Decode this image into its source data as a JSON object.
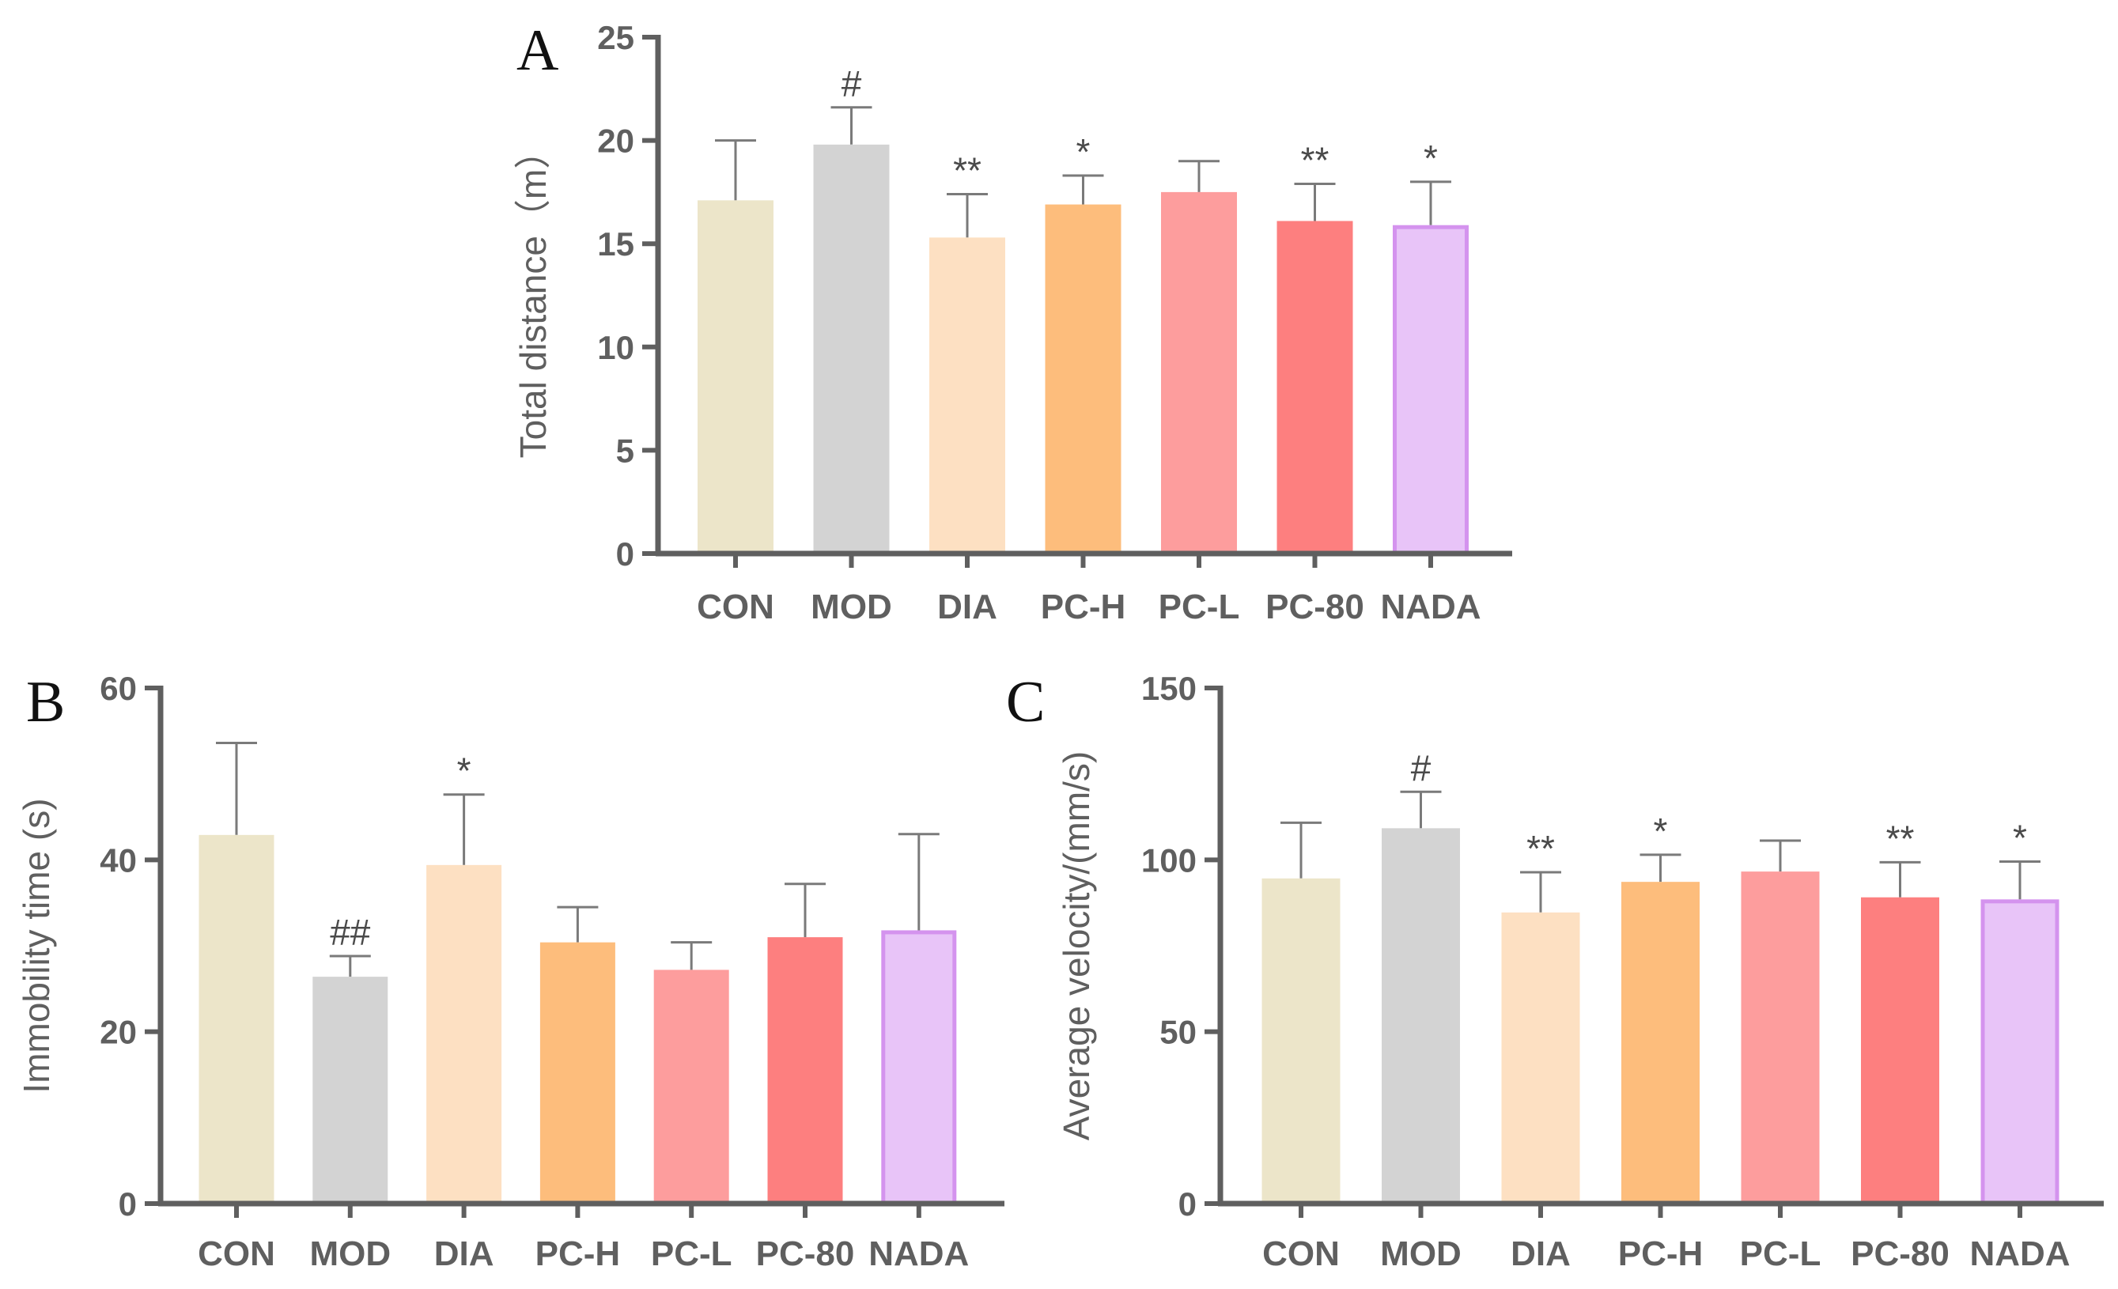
{
  "colors": {
    "axis": "#5f5f5f",
    "errorbar": "#7a7a7a",
    "text": "#5f5f5f"
  },
  "group_colors": [
    "#ece5c9",
    "#d3d3d3",
    "#fde0c2",
    "#fdbd7c",
    "#fd9d9d",
    "#fd7f7f",
    "#e8c4f8"
  ],
  "group_edges": [
    "#ece5c9",
    "#d3d3d3",
    "#fde0c2",
    "#fdbd7c",
    "#fd9d9d",
    "#fd7f7f",
    "#d493ee"
  ],
  "chart_data": [
    {
      "panel": "A",
      "type": "bar",
      "categories": [
        "CON",
        "MOD",
        "DIA",
        "PC-H",
        "PC-L",
        "PC-80",
        "NADA"
      ],
      "values": [
        17.1,
        19.8,
        15.3,
        16.9,
        17.5,
        16.1,
        15.9
      ],
      "errors": [
        2.9,
        1.8,
        2.1,
        1.4,
        1.5,
        1.8,
        2.1
      ],
      "significance": [
        "",
        "#",
        "**",
        "*",
        "",
        "**",
        "*"
      ],
      "ylabel": "Total distance（m）",
      "ylim": [
        0,
        25
      ],
      "yticks": [
        0,
        5,
        10,
        15,
        20,
        25
      ],
      "ytick_labels": [
        "0",
        "5",
        "10",
        "15",
        "20",
        "25"
      ]
    },
    {
      "panel": "B",
      "type": "bar",
      "categories": [
        "CON",
        "MOD",
        "DIA",
        "PC-H",
        "PC-L",
        "PC-80",
        "NADA"
      ],
      "values": [
        42.9,
        26.4,
        39.4,
        30.4,
        27.2,
        31.0,
        31.8
      ],
      "errors": [
        10.7,
        2.4,
        8.2,
        4.1,
        3.2,
        6.2,
        11.2
      ],
      "significance": [
        "",
        "##",
        "*",
        "",
        "",
        "",
        ""
      ],
      "ylabel": "Immobility time (s)",
      "ylim": [
        0,
        60
      ],
      "yticks": [
        0,
        20,
        40,
        60
      ],
      "ytick_labels": [
        "0",
        "20",
        "40",
        "60"
      ]
    },
    {
      "panel": "C",
      "type": "bar",
      "categories": [
        "CON",
        "MOD",
        "DIA",
        "PC-H",
        "PC-L",
        "PC-80",
        "NADA"
      ],
      "values": [
        94.6,
        109.2,
        84.7,
        93.6,
        96.6,
        89.1,
        88.5
      ],
      "errors": [
        16.2,
        10.6,
        11.7,
        7.9,
        9.0,
        10.2,
        11.0
      ],
      "significance": [
        "",
        "#",
        "**",
        "*",
        "",
        "**",
        "*"
      ],
      "ylabel": "Average velocity/(mm/s)",
      "ylim": [
        0,
        150
      ],
      "yticks": [
        0,
        50,
        100,
        150
      ],
      "ytick_labels": [
        "0",
        "50",
        "100",
        "150"
      ]
    }
  ]
}
